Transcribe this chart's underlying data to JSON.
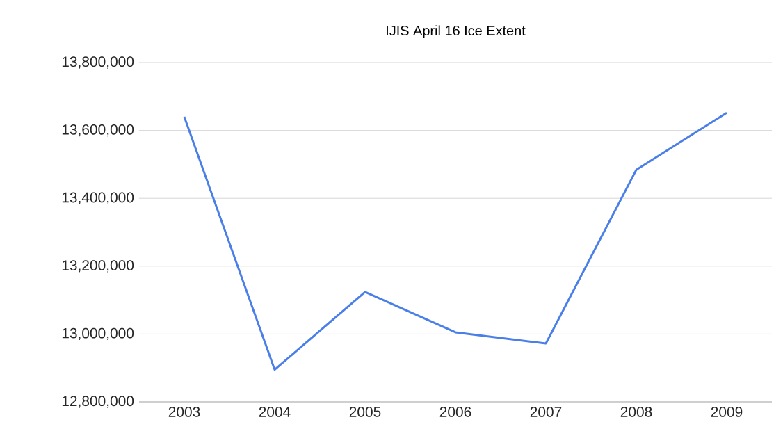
{
  "chart_data": {
    "type": "line",
    "title": "IJIS April 16 Ice Extent",
    "categories": [
      "2003",
      "2004",
      "2005",
      "2006",
      "2007",
      "2008",
      "2009"
    ],
    "values": [
      13640000,
      12895000,
      13124000,
      13005000,
      12972000,
      13484000,
      13652000
    ],
    "color": "#4a7fe8",
    "ylim": [
      12800000,
      13800000
    ],
    "yticks": [
      {
        "value": 12800000,
        "label": "12,800,000"
      },
      {
        "value": 13000000,
        "label": "13,000,000"
      },
      {
        "value": 13200000,
        "label": "13,200,000"
      },
      {
        "value": 13400000,
        "label": "13,400,000"
      },
      {
        "value": 13600000,
        "label": "13,600,000"
      },
      {
        "value": 13800000,
        "label": "13,800,000"
      }
    ],
    "grid": "y",
    "marker": "none",
    "line_style": "solid"
  }
}
